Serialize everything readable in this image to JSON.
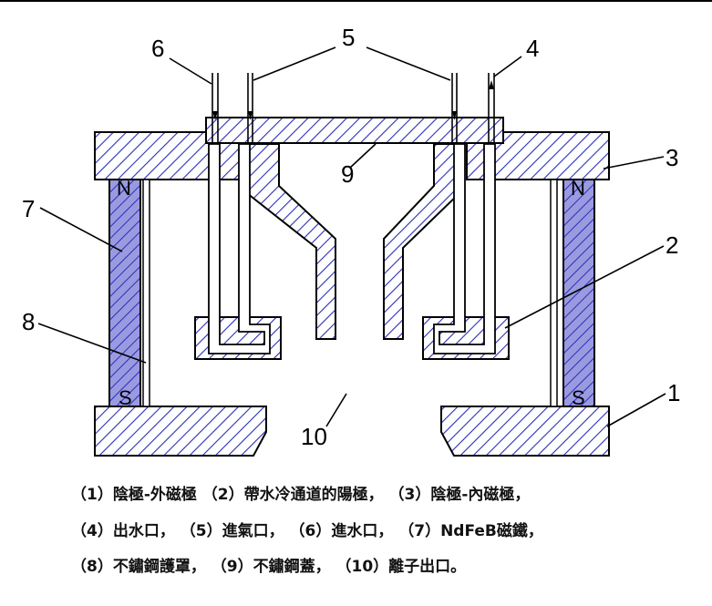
{
  "labels": {
    "n1": "1",
    "n2": "2",
    "n3": "3",
    "n4": "4",
    "n5": "5",
    "n6": "6",
    "n7": "7",
    "n8": "8",
    "n9": "9",
    "n10": "10"
  },
  "magnet": {
    "north": "N",
    "south": "S"
  },
  "caption": {
    "line1": "（1）陰極-外磁極 （2）帶水冷通道的陽極， （3）陰極-內磁極，",
    "line2": "（4）出水口， （5）進氣口， （6）進水口， （7）NdFeB磁鐵，",
    "line3": "（8）不鏽鋼護罩， （9）不鏽鋼蓋， （10）離子出口。"
  },
  "colors": {
    "hatch": "#2b2fb5",
    "magnet_fill": "#8c8cd9",
    "line": "#000000"
  }
}
